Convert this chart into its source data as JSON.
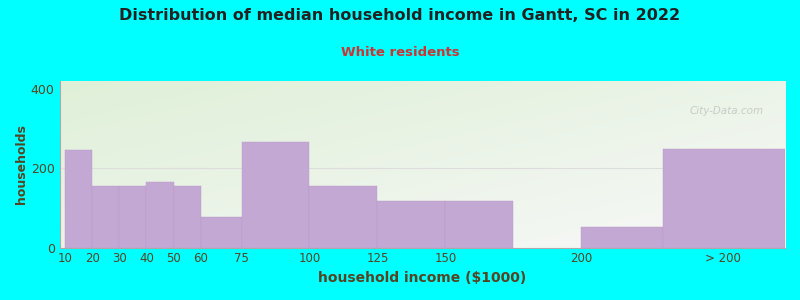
{
  "title": "Distribution of median household income in Gantt, SC in 2022",
  "subtitle": "White residents",
  "xlabel": "household income ($1000)",
  "ylabel": "households",
  "background_outer": "#00FFFF",
  "background_inner_top_left": "#dff0d8",
  "background_inner_bottom_right": "#f8f8f8",
  "bar_color": "#c4a8d4",
  "bar_edge_color": "#b898c8",
  "title_color": "#222222",
  "subtitle_color": "#cc3333",
  "axis_label_color": "#554422",
  "tick_color": "#554422",
  "watermark": "City-Data.com",
  "categories": [
    "10",
    "20",
    "30",
    "40",
    "50",
    "60",
    "75",
    "100",
    "125",
    "150",
    "200",
    "> 200"
  ],
  "values": [
    245,
    155,
    155,
    165,
    155,
    78,
    265,
    155,
    118,
    118,
    52,
    248
  ],
  "bar_lefts": [
    10,
    20,
    30,
    40,
    50,
    60,
    75,
    100,
    125,
    150,
    200,
    230
  ],
  "bar_rights": [
    20,
    30,
    40,
    50,
    60,
    75,
    100,
    125,
    150,
    175,
    230,
    275
  ],
  "xtick_pos": [
    10,
    20,
    30,
    40,
    50,
    60,
    75,
    100,
    125,
    150,
    200,
    252
  ],
  "xlim": [
    8,
    275
  ],
  "ylim": [
    0,
    420
  ],
  "yticks": [
    0,
    200,
    400
  ],
  "gridline_y": 200,
  "gridline_color": "#dddddd"
}
